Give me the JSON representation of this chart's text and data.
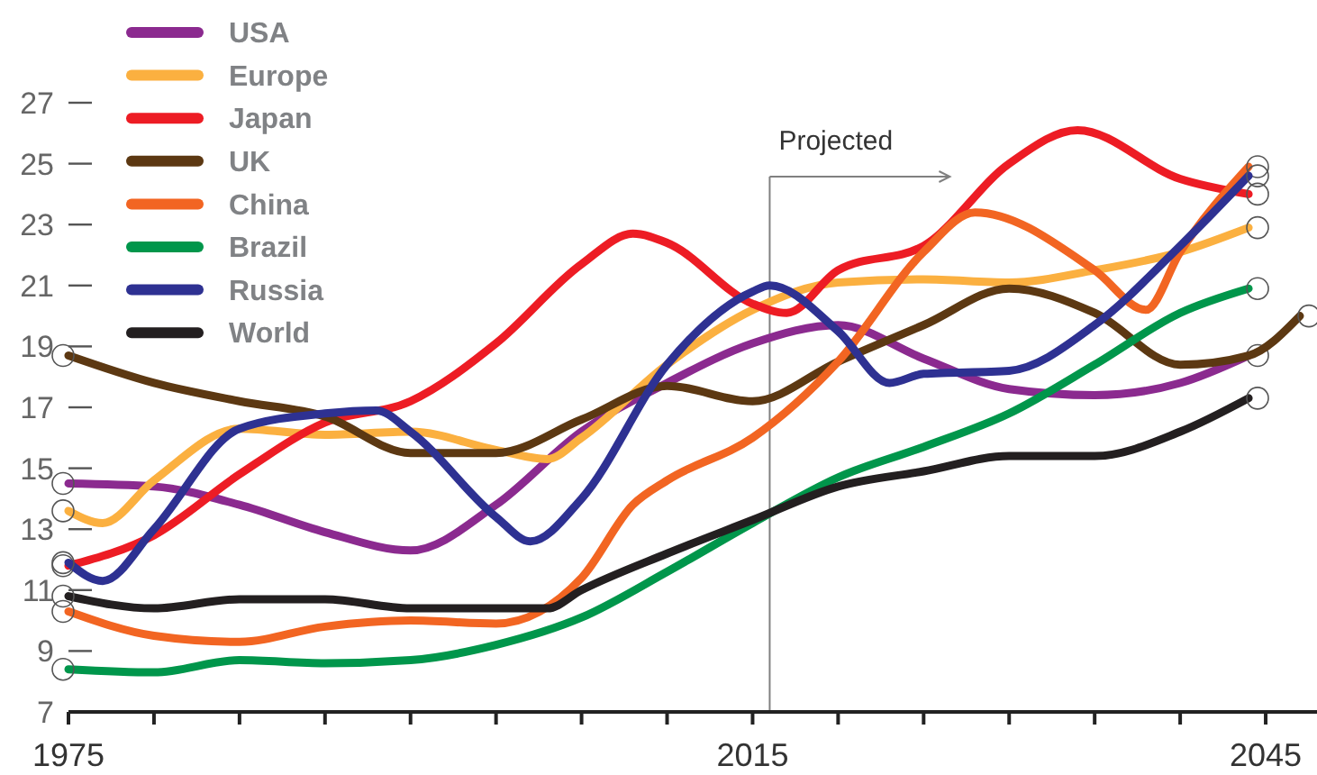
{
  "chart_data": {
    "type": "line",
    "legend": "top left",
    "grid": false,
    "line_style": "solid",
    "marker": "none",
    "xlim": [
      1975,
      2048
    ],
    "ylim": [
      7,
      27
    ],
    "xticks": [
      1975,
      {
        "value": 1980,
        "label": null
      },
      {
        "value": 1985,
        "label": null
      },
      {
        "value": 1990,
        "label": null
      },
      {
        "value": 1995,
        "label": null
      },
      {
        "value": 2000,
        "label": null
      },
      {
        "value": 2005,
        "label": null
      },
      {
        "value": 2010,
        "label": null
      },
      2015,
      {
        "value": 2020,
        "label": null
      },
      {
        "value": 2025,
        "label": null
      },
      {
        "value": 2030,
        "label": null
      },
      {
        "value": 2035,
        "label": null
      },
      {
        "value": 2040,
        "label": null
      },
      2045
    ],
    "yticks": [
      7,
      9,
      11,
      13,
      15,
      17,
      19,
      21,
      23,
      25,
      27
    ],
    "ref_lines": [
      {
        "axis": "x",
        "value": 2016,
        "label": "Projected",
        "color": "#808080"
      }
    ],
    "series": [
      {
        "name": "USA",
        "color": "#8b2a8f",
        "x": [
          1975,
          1980,
          1985,
          1990,
          1995,
          2000,
          2005,
          2010,
          2015,
          2020,
          2025,
          2030,
          2035,
          2040,
          2044
        ],
        "values": [
          14.5,
          14.4,
          13.8,
          12.9,
          12.3,
          13.8,
          16.2,
          17.8,
          19.1,
          19.7,
          18.6,
          17.6,
          17.4,
          17.8,
          18.7
        ]
      },
      {
        "name": "Europe",
        "color": "#fbb040",
        "x": [
          1975,
          1977,
          1980,
          1985,
          1990,
          1995,
          2000,
          2003,
          2005,
          2010,
          2015,
          2020,
          2025,
          2030,
          2035,
          2040,
          2044
        ],
        "values": [
          13.6,
          13.2,
          14.6,
          16.3,
          16.1,
          16.2,
          15.6,
          15.3,
          16.0,
          18.4,
          20.2,
          21.1,
          21.2,
          21.1,
          21.5,
          22.1,
          22.9
        ]
      },
      {
        "name": "Japan",
        "color": "#ed1c24",
        "x": [
          1975,
          1980,
          1985,
          1990,
          1995,
          2000,
          2005,
          2008,
          2010,
          2015,
          2017,
          2020,
          2025,
          2030,
          2034,
          2040,
          2044
        ],
        "values": [
          11.8,
          12.8,
          14.8,
          16.5,
          17.2,
          19.1,
          21.7,
          22.7,
          22.4,
          20.4,
          20.1,
          21.5,
          22.3,
          25.0,
          26.1,
          24.5,
          24.0
        ]
      },
      {
        "name": "UK",
        "color": "#5c3812",
        "x": [
          1975,
          1980,
          1985,
          1990,
          1995,
          2000,
          2005,
          2010,
          2015,
          2020,
          2025,
          2030,
          2035,
          2040,
          2044,
          2047
        ],
        "values": [
          18.7,
          17.8,
          17.2,
          16.7,
          15.5,
          15.5,
          16.6,
          17.7,
          17.2,
          18.5,
          19.7,
          20.9,
          20.1,
          18.4,
          18.7,
          20.0
        ]
      },
      {
        "name": "China",
        "color": "#f26522",
        "x": [
          1975,
          1980,
          1985,
          1990,
          1995,
          2000,
          2005,
          2008,
          2010,
          2015,
          2020,
          2025,
          2028,
          2035,
          2038,
          2040,
          2044
        ],
        "values": [
          10.3,
          9.5,
          9.3,
          9.8,
          10.0,
          9.9,
          11.4,
          13.8,
          14.6,
          16.0,
          18.5,
          22.1,
          23.4,
          21.5,
          20.2,
          22.1,
          24.9
        ]
      },
      {
        "name": "Brazil",
        "color": "#00964b",
        "x": [
          1975,
          1980,
          1985,
          1990,
          1995,
          2000,
          2005,
          2010,
          2015,
          2020,
          2025,
          2030,
          2035,
          2040,
          2044
        ],
        "values": [
          8.4,
          8.3,
          8.7,
          8.6,
          8.7,
          9.2,
          10.1,
          11.6,
          13.2,
          14.7,
          15.7,
          16.8,
          18.4,
          20.1,
          20.9
        ]
      },
      {
        "name": "Russia",
        "color": "#2e3192",
        "x": [
          1975,
          1977,
          1980,
          1985,
          1990,
          1993,
          1995,
          2000,
          2002,
          2005,
          2010,
          2015,
          2016,
          2020,
          2023,
          2025,
          2030,
          2035,
          2040,
          2044
        ],
        "values": [
          11.9,
          11.3,
          13.0,
          16.3,
          16.8,
          16.9,
          16.2,
          13.4,
          12.6,
          14.0,
          18.4,
          20.8,
          21.0,
          19.5,
          17.8,
          18.1,
          18.2,
          19.7,
          22.3,
          24.6
        ]
      },
      {
        "name": "World",
        "color": "#231f20",
        "x": [
          1975,
          1980,
          1985,
          1990,
          1995,
          2000,
          2003,
          2005,
          2010,
          2015,
          2020,
          2025,
          2030,
          2035,
          2040,
          2044
        ],
        "values": [
          10.8,
          10.4,
          10.7,
          10.7,
          10.4,
          10.4,
          10.4,
          11.0,
          12.2,
          13.3,
          14.4,
          14.9,
          15.4,
          15.4,
          16.2,
          17.3
        ]
      }
    ]
  }
}
